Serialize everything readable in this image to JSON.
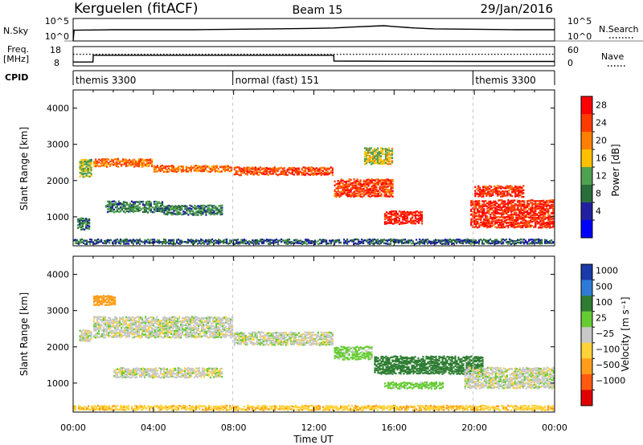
{
  "header": {
    "station": "Kerguelen (fitACF)",
    "beam": "Beam 15",
    "date": "29/Jan/2016"
  },
  "strips": {
    "nsky": {
      "label": "N.Sky",
      "left_ticks": [
        "10^5",
        "10^0"
      ],
      "right_ticks": [
        "10^5",
        "10^0"
      ],
      "right_label": "N.Search"
    },
    "freq": {
      "label_line1": "Freq.",
      "label_line2": "[MHz]",
      "left_ticks": [
        "18",
        "8"
      ],
      "right_ticks": [
        "60",
        "0"
      ],
      "right_label": "Nave"
    },
    "cpid": {
      "label": "CPID",
      "segments": [
        {
          "label": "themis 3300",
          "start_h": 0.0,
          "end_h": 7.96
        },
        {
          "label": "normal (fast) 151",
          "start_h": 7.96,
          "end_h": 19.93
        },
        {
          "label": "themis 3300",
          "start_h": 19.93,
          "end_h": 24.0
        }
      ]
    }
  },
  "axes": {
    "x_title": "Time UT",
    "x_ticks": [
      "00:00",
      "04:00",
      "08:00",
      "12:00",
      "16:00",
      "20:00",
      "00:00"
    ],
    "y_title_power": "Slant Range [km]",
    "y_title_velocity": "Slant Range [km]",
    "y_ticks": [
      "4000",
      "3000",
      "2000",
      "1000"
    ]
  },
  "power_scale": {
    "title": "Power [dB]",
    "ticks": [
      "28",
      "24",
      "20",
      "16",
      "12",
      "8",
      "4"
    ],
    "colors": [
      "#ff0000",
      "#ff3b00",
      "#ff7f00",
      "#ffc000",
      "#4fa14f",
      "#2a6e3c",
      "#2020a0",
      "#0000ff"
    ]
  },
  "velocity_scale": {
    "title": "Velocity [m s⁻¹]",
    "ticks": [
      "1000",
      "500",
      "100",
      "25",
      "−25",
      "−100",
      "−500",
      "−1000"
    ],
    "colors": [
      "#1a3aa8",
      "#2e7bd6",
      "#2e7d32",
      "#66cc33",
      "#c8c8c8",
      "#ffd23a",
      "#ff9d1a",
      "#ff5a10",
      "#e00000"
    ]
  },
  "chart_data": [
    {
      "type": "line",
      "name_in_chart": "N.Sky",
      "x_unit": "hours UT",
      "x": [
        0.0,
        0.05,
        2,
        4,
        6,
        8,
        10,
        12,
        13,
        14,
        15,
        15.5,
        16,
        17,
        18,
        20,
        22,
        24
      ],
      "y": [
        0,
        2.4,
        2.5,
        2.5,
        2.5,
        2.6,
        2.7,
        2.8,
        2.9,
        3.1,
        3.3,
        3.4,
        3.2,
        2.9,
        2.7,
        2.6,
        2.5,
        2.5
      ],
      "y_scale": "log10",
      "ylim": [
        0,
        5
      ]
    },
    {
      "type": "line",
      "name_in_chart": "Freq.",
      "y_unit": "MHz",
      "x": [
        0.0,
        0.99,
        1.0,
        12.99,
        13.0,
        20.0,
        24.0
      ],
      "y": [
        10,
        10,
        13.5,
        13.5,
        10.5,
        10.3,
        10.3
      ],
      "ylim": [
        8,
        18
      ]
    },
    {
      "type": "line",
      "name_in_chart": "Nave",
      "x": [
        0,
        24
      ],
      "y": [
        36,
        36
      ],
      "ylim": [
        0,
        60
      ]
    },
    {
      "type": "heatmap",
      "panel": "power",
      "x_unit": "hours UT",
      "y_unit": "km",
      "xlim": [
        0,
        24
      ],
      "ylim": [
        200,
        4500
      ],
      "zlim": [
        0,
        30
      ],
      "bands": [
        {
          "t": [
            0.3,
            1.0
          ],
          "r": [
            2100,
            2600
          ],
          "z": 14
        },
        {
          "t": [
            0.2,
            0.9
          ],
          "r": [
            650,
            1000
          ],
          "z": 10
        },
        {
          "t": [
            1.0,
            4.0
          ],
          "r": [
            2380,
            2620
          ],
          "z": 22
        },
        {
          "t": [
            4.0,
            8.0
          ],
          "r": [
            2240,
            2450
          ],
          "z": 22
        },
        {
          "t": [
            8.0,
            13.0
          ],
          "r": [
            2150,
            2380
          ],
          "z": 24
        },
        {
          "t": [
            1.6,
            4.5
          ],
          "r": [
            1120,
            1460
          ],
          "z": 10
        },
        {
          "t": [
            4.5,
            7.5
          ],
          "r": [
            1050,
            1350
          ],
          "z": 10
        },
        {
          "t": [
            13.0,
            16.0
          ],
          "r": [
            1550,
            2050
          ],
          "z": 25
        },
        {
          "t": [
            15.5,
            17.5
          ],
          "r": [
            800,
            1200
          ],
          "z": 27
        },
        {
          "t": [
            14.5,
            16.0
          ],
          "r": [
            2450,
            2900
          ],
          "z": 16
        },
        {
          "t": [
            19.8,
            24.0
          ],
          "r": [
            700,
            1500
          ],
          "z": 26
        },
        {
          "t": [
            20.0,
            22.5
          ],
          "r": [
            1550,
            1900
          ],
          "z": 26
        },
        {
          "t": [
            0.0,
            24.0
          ],
          "r": [
            250,
            420
          ],
          "z": 8
        }
      ]
    },
    {
      "type": "heatmap",
      "panel": "velocity",
      "x_unit": "hours UT",
      "y_unit": "km",
      "xlim": [
        0,
        24
      ],
      "ylim": [
        200,
        4500
      ],
      "zlim": [
        -1000,
        1000
      ],
      "bands": [
        {
          "t": [
            0.3,
            1.0
          ],
          "r": [
            2150,
            2500
          ],
          "v": 0
        },
        {
          "t": [
            1.0,
            8.0
          ],
          "r": [
            2250,
            2850
          ],
          "v": 0
        },
        {
          "t": [
            8.0,
            13.0
          ],
          "r": [
            2050,
            2450
          ],
          "v": 0
        },
        {
          "t": [
            2.0,
            7.5
          ],
          "r": [
            1150,
            1450
          ],
          "v": 0
        },
        {
          "t": [
            1.0,
            2.2
          ],
          "r": [
            3150,
            3450
          ],
          "v": -300
        },
        {
          "t": [
            13.0,
            15.0
          ],
          "r": [
            1650,
            2050
          ],
          "v": 50
        },
        {
          "t": [
            15.0,
            20.5
          ],
          "r": [
            1250,
            1750
          ],
          "v": 200
        },
        {
          "t": [
            15.5,
            18.5
          ],
          "r": [
            850,
            1050
          ],
          "v": 60
        },
        {
          "t": [
            19.5,
            24.0
          ],
          "r": [
            850,
            1450
          ],
          "v": 0
        },
        {
          "t": [
            0.0,
            24.0
          ],
          "r": [
            250,
            400
          ],
          "v": -80
        }
      ]
    }
  ]
}
